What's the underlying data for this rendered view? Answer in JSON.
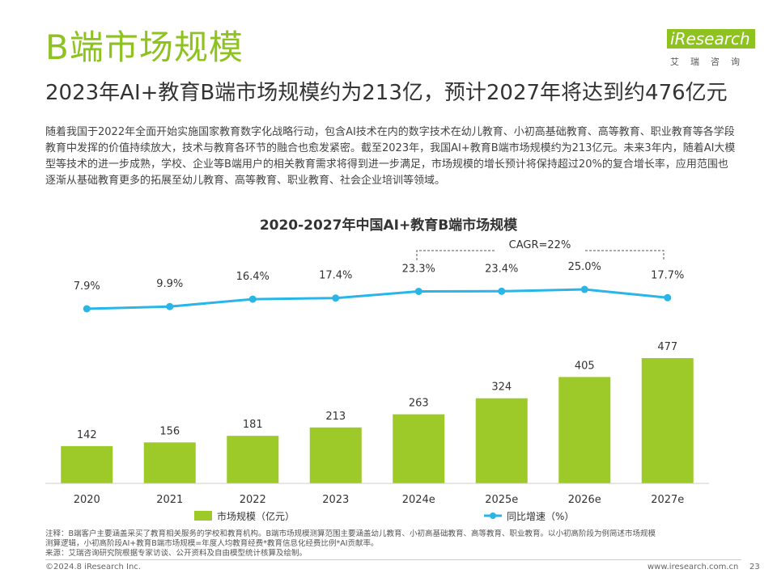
{
  "header": {
    "title": "B端市场规模",
    "subtitle": "2023年AI+教育B端市场规模约为213亿，预计2027年将达到约476亿元",
    "logo_i": "i",
    "logo_text": "Research",
    "logo_sub": "艾瑞咨询"
  },
  "body": {
    "paragraph": "随着我国于2022年全面开始实施国家教育数字化战略行动，包含AI技术在内的数字技术在幼儿教育、小初高基础教育、高等教育、职业教育等各学段教育中发挥的价值持续放大，技术与教育各环节的融合也愈发紧密。截至2023年，我国AI+教育B端市场规模约为213亿元。未来3年内，随着AI大模型等技术的进一步成熟，学校、企业等B端用户的相关教育需求将得到进一步满足，市场规模的增长预计将保持超过20%的复合增长率，应用范围也逐渐从基础教育更多的拓展至幼儿教育、高等教育、职业教育、社会企业培训等领域。"
  },
  "chart_data": {
    "type": "bar",
    "title": "2020-2027年中国AI+教育B端市场规模",
    "categories": [
      "2020",
      "2021",
      "2022",
      "2023",
      "2024e",
      "2025e",
      "2026e",
      "2027e"
    ],
    "series": [
      {
        "name": "市场规模（亿元）",
        "type": "bar",
        "values": [
          142,
          156,
          181,
          213,
          263,
          324,
          405,
          477
        ],
        "labels": [
          "142",
          "156",
          "181",
          "213",
          "263",
          "324",
          "405",
          "477"
        ]
      },
      {
        "name": "同比增速（%）",
        "type": "line",
        "values": [
          7.9,
          9.9,
          16.4,
          17.4,
          23.3,
          23.4,
          25.0,
          17.7
        ],
        "labels": [
          "7.9%",
          "9.9%",
          "16.4%",
          "17.4%",
          "23.3%",
          "23.4%",
          "25.0%",
          "17.7%"
        ]
      }
    ],
    "annotation": "CAGR=22%",
    "legend_position": "bottom",
    "grid": false,
    "colors": {
      "bar": "#9dc929",
      "line": "#29b5e8",
      "text": "#333333"
    }
  },
  "notes": {
    "line1": "注释：B端客户主要涵盖采买了教育相关服务的学校和教育机构。B端市场规模测算范围主要涵盖幼儿教育、小初高基础教育、高等教育、职业教育。以小初高阶段为例简述市场规模",
    "line2": "测算逻辑，小初高阶段AI+教育B端市场规模=年度人均教育经费*教育信息化经费比例*AI贡献率。",
    "line3": "来源：艾瑞咨询研究院根据专家访谈、公开资料及自由模型统计核算及绘制。"
  },
  "footer": {
    "copyright": "©2024.8 iResearch Inc.",
    "website": "www.iresearch.com.cn",
    "page": "23"
  }
}
